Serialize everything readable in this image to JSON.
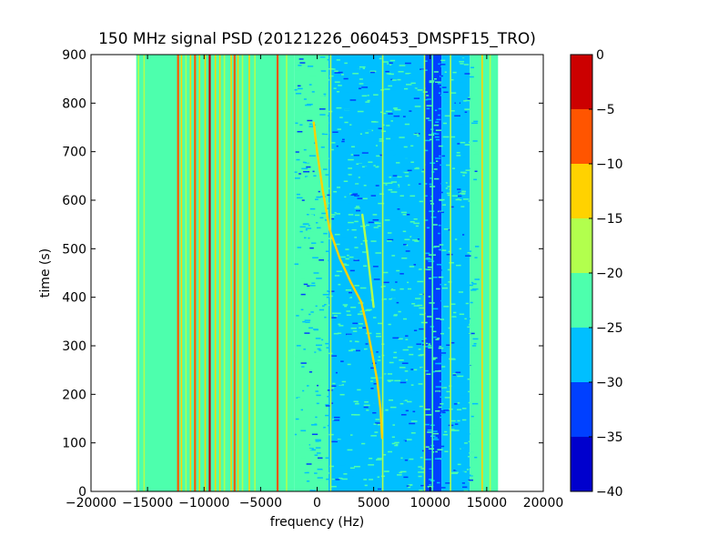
{
  "chart_data": {
    "type": "heatmap",
    "title": "150 MHz signal PSD (20121226_060453_DMSPF15_TRO)",
    "xlabel": "frequency (Hz)",
    "ylabel": "time (s)",
    "xlim": [
      -20000,
      20000
    ],
    "ylim": [
      0,
      900
    ],
    "data_x_range": [
      -16000,
      16000
    ],
    "x_ticks": [
      -20000,
      -15000,
      -10000,
      -5000,
      0,
      5000,
      10000,
      15000,
      20000
    ],
    "x_tick_labels": [
      "−20000",
      "−15000",
      "−10000",
      "−5000",
      "0",
      "5000",
      "10000",
      "15000",
      "20000"
    ],
    "y_ticks": [
      0,
      100,
      200,
      300,
      400,
      500,
      600,
      700,
      800,
      900
    ],
    "y_tick_labels": [
      "0",
      "100",
      "200",
      "300",
      "400",
      "500",
      "600",
      "700",
      "800",
      "900"
    ],
    "colorbar": {
      "range": [
        -40,
        0
      ],
      "ticks": [
        0,
        -5,
        -10,
        -15,
        -20,
        -25,
        -30,
        -35,
        -40
      ],
      "tick_labels": [
        "0",
        "−5",
        "−10",
        "−15",
        "−20",
        "−25",
        "−30",
        "−35",
        "−40"
      ],
      "levels": [
        {
          "from": -40,
          "to": -35,
          "color": "#0000cd"
        },
        {
          "from": -35,
          "to": -30,
          "color": "#0040ff"
        },
        {
          "from": -30,
          "to": -25,
          "color": "#00bfff"
        },
        {
          "from": -25,
          "to": -20,
          "color": "#4dffad"
        },
        {
          "from": -20,
          "to": -15,
          "color": "#b2ff4d"
        },
        {
          "from": -15,
          "to": -10,
          "color": "#ffd200"
        },
        {
          "from": -10,
          "to": -5,
          "color": "#ff5500"
        },
        {
          "from": -5,
          "to": 0,
          "color": "#cc0000"
        }
      ]
    },
    "background_bands": [
      {
        "x0": -16000,
        "x1": -2000,
        "level": -22.5
      },
      {
        "x0": -2000,
        "x1": 1000,
        "level": -24
      },
      {
        "x0": 1000,
        "x1": 9500,
        "level": -27.5
      },
      {
        "x0": 9500,
        "x1": 11000,
        "level": -30
      },
      {
        "x0": 11000,
        "x1": 13500,
        "level": -27.5
      },
      {
        "x0": 13500,
        "x1": 16000,
        "level": -22.5
      }
    ],
    "vertical_lines": [
      {
        "x": -15800,
        "level": -17.5
      },
      {
        "x": -15300,
        "level": -17.5
      },
      {
        "x": -12300,
        "level": -7.5
      },
      {
        "x": -12000,
        "level": -12.5
      },
      {
        "x": -11600,
        "level": -17.5
      },
      {
        "x": -11200,
        "level": -12.5
      },
      {
        "x": -10800,
        "level": -7.5
      },
      {
        "x": -10400,
        "level": -12.5
      },
      {
        "x": -9900,
        "level": -12.5
      },
      {
        "x": -9500,
        "level": -2.5
      },
      {
        "x": -9000,
        "level": -12.5
      },
      {
        "x": -8600,
        "level": -12.5
      },
      {
        "x": -8200,
        "level": -17.5
      },
      {
        "x": -7600,
        "level": -12.5
      },
      {
        "x": -7300,
        "level": -7.5
      },
      {
        "x": -7000,
        "level": -12.5
      },
      {
        "x": -6600,
        "level": -17.5
      },
      {
        "x": -6000,
        "level": -12.5
      },
      {
        "x": -5500,
        "level": -17.5
      },
      {
        "x": -3500,
        "level": -7.5
      },
      {
        "x": -2700,
        "level": -17.5
      },
      {
        "x": 1200,
        "level": -17.5
      },
      {
        "x": 5800,
        "level": -17.5
      },
      {
        "x": 9500,
        "level": -17.5
      },
      {
        "x": 10200,
        "level": -22.5
      },
      {
        "x": 11800,
        "level": -17.5
      },
      {
        "x": 14600,
        "level": -12.5
      },
      {
        "x": 15300,
        "level": -17.5
      }
    ],
    "traces": [
      {
        "level": -12.5,
        "points": [
          [
            -300,
            760
          ],
          [
            0,
            700
          ],
          [
            500,
            620
          ],
          [
            1100,
            540
          ],
          [
            2000,
            480
          ],
          [
            3000,
            430
          ],
          [
            3900,
            390
          ],
          [
            4400,
            340
          ],
          [
            4900,
            280
          ],
          [
            5300,
            230
          ],
          [
            5600,
            170
          ],
          [
            5750,
            110
          ]
        ]
      },
      {
        "level": -17.5,
        "points": [
          [
            4000,
            570
          ],
          [
            4400,
            500
          ],
          [
            4700,
            440
          ],
          [
            5000,
            380
          ]
        ]
      }
    ]
  }
}
